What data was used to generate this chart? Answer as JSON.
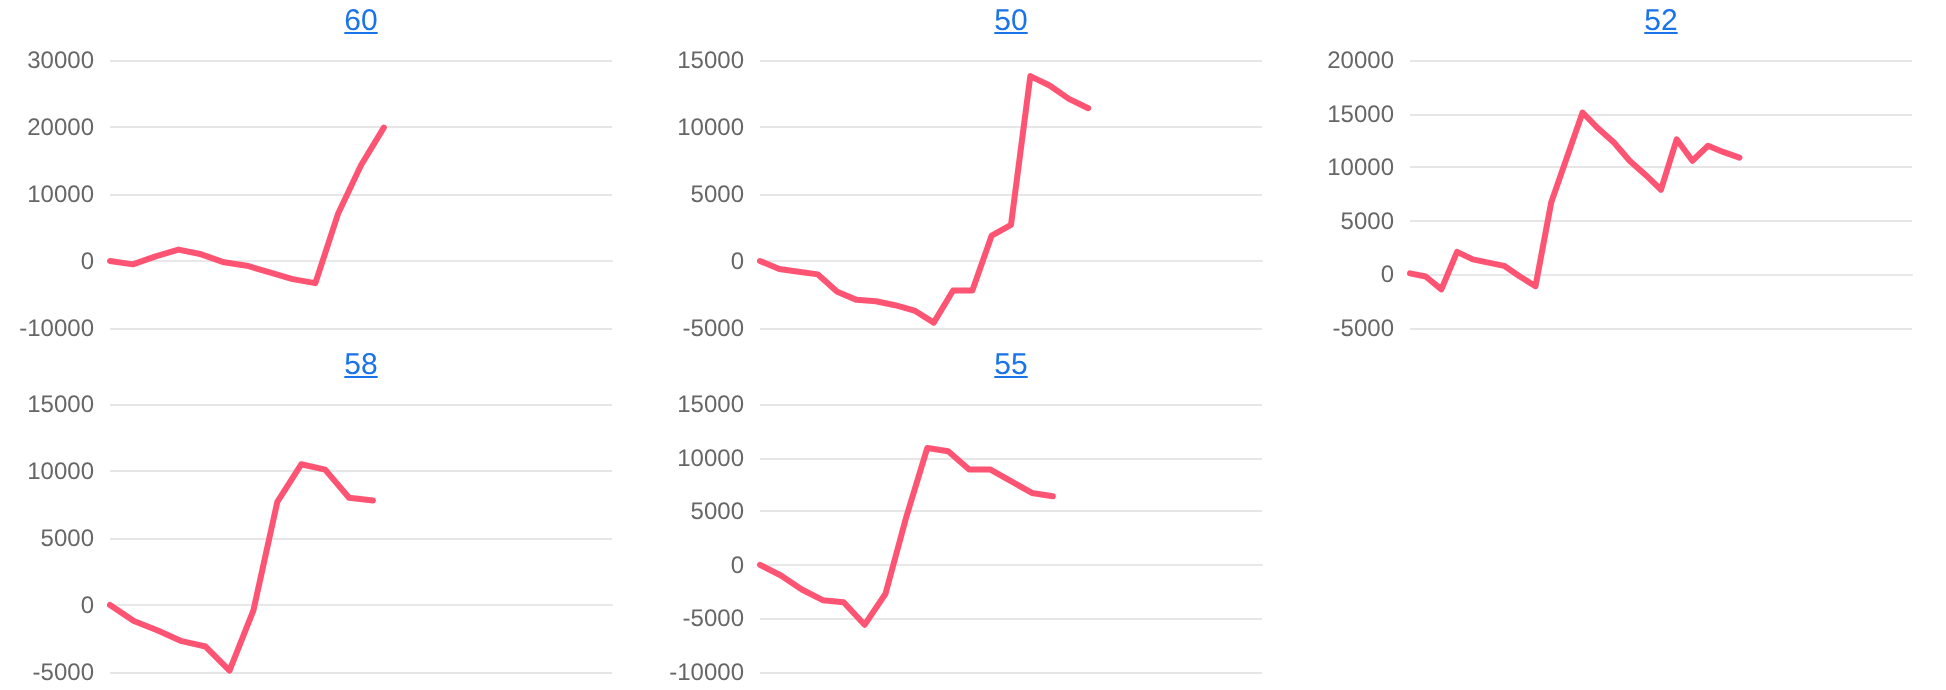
{
  "chart_data": [
    {
      "type": "line",
      "title": "60",
      "color": "#fd5473",
      "marker": "none",
      "grid": "y",
      "tick_labels": "y",
      "ylim": [
        -10000,
        30000
      ],
      "yticks": [
        -10000,
        0,
        10000,
        20000,
        30000
      ],
      "categories": [
        null,
        null,
        null,
        null,
        null,
        null,
        null,
        null,
        null,
        null,
        null,
        null,
        null,
        null,
        null,
        null,
        null,
        null,
        null,
        null,
        null,
        null,
        null
      ],
      "values": [
        0,
        -500,
        700,
        1700,
        1000,
        -200,
        -700,
        -1700,
        -2700,
        -3300,
        7100,
        14300,
        19900,
        null,
        null,
        null,
        null,
        null,
        null,
        null,
        null,
        null,
        null
      ]
    },
    {
      "type": "line",
      "title": "50",
      "color": "#fd5473",
      "marker": "none",
      "grid": "y",
      "tick_labels": "y",
      "ylim": [
        -5000,
        15000
      ],
      "yticks": [
        -5000,
        0,
        5000,
        10000,
        15000
      ],
      "categories": [
        null,
        null,
        null,
        null,
        null,
        null,
        null,
        null,
        null,
        null,
        null,
        null,
        null,
        null,
        null,
        null,
        null,
        null,
        null,
        null,
        null,
        null,
        null,
        null,
        null,
        null,
        null
      ],
      "values": [
        0,
        -600,
        -800,
        -1000,
        -2300,
        -2900,
        -3000,
        -3300,
        -3700,
        -4600,
        -2200,
        -2200,
        1900,
        2700,
        13800,
        13100,
        12100,
        11400,
        null,
        null,
        null,
        null,
        null,
        null,
        null,
        null,
        null
      ]
    },
    {
      "type": "line",
      "title": "52",
      "color": "#fd5473",
      "marker": "none",
      "grid": "y",
      "tick_labels": "y",
      "ylim": [
        -5000,
        20000
      ],
      "yticks": [
        -5000,
        0,
        5000,
        10000,
        15000,
        20000
      ],
      "categories": [
        null,
        null,
        null,
        null,
        null,
        null,
        null,
        null,
        null,
        null,
        null,
        null,
        null,
        null,
        null,
        null,
        null,
        null,
        null,
        null,
        null,
        null,
        null,
        null,
        null,
        null,
        null,
        null,
        null,
        null,
        null,
        null,
        null
      ],
      "values": [
        100,
        -200,
        -1400,
        2100,
        1400,
        1100,
        800,
        -200,
        -1100,
        6700,
        10900,
        15100,
        13600,
        12300,
        10600,
        9300,
        7900,
        12600,
        10600,
        12000,
        11400,
        10900,
        null,
        null,
        null,
        null,
        null,
        null,
        null,
        null,
        null,
        null,
        null
      ]
    },
    {
      "type": "line",
      "title": "58",
      "color": "#fd5473",
      "marker": "none",
      "grid": "y",
      "tick_labels": "y",
      "ylim": [
        -5000,
        15000
      ],
      "yticks": [
        -5000,
        0,
        5000,
        10000,
        15000
      ],
      "categories": [
        null,
        null,
        null,
        null,
        null,
        null,
        null,
        null,
        null,
        null,
        null,
        null,
        null,
        null,
        null,
        null,
        null,
        null,
        null,
        null,
        null,
        null
      ],
      "values": [
        0,
        -1200,
        -1900,
        -2700,
        -3100,
        -4900,
        -400,
        7700,
        10500,
        10100,
        8000,
        7800,
        null,
        null,
        null,
        null,
        null,
        null,
        null,
        null,
        null,
        null
      ]
    },
    {
      "type": "line",
      "title": "55",
      "color": "#fd5473",
      "marker": "none",
      "grid": "y",
      "tick_labels": "y",
      "ylim": [
        -10000,
        15000
      ],
      "yticks": [
        -10000,
        -5000,
        0,
        5000,
        10000,
        15000
      ],
      "categories": [
        null,
        null,
        null,
        null,
        null,
        null,
        null,
        null,
        null,
        null,
        null,
        null,
        null,
        null,
        null,
        null,
        null,
        null,
        null,
        null,
        null,
        null,
        null,
        null,
        null
      ],
      "values": [
        0,
        -1000,
        -2300,
        -3300,
        -3500,
        -5600,
        -2700,
        4500,
        10900,
        10600,
        8900,
        8900,
        7800,
        6700,
        6400,
        null,
        null,
        null,
        null,
        null,
        null,
        null,
        null,
        null,
        null
      ]
    }
  ]
}
